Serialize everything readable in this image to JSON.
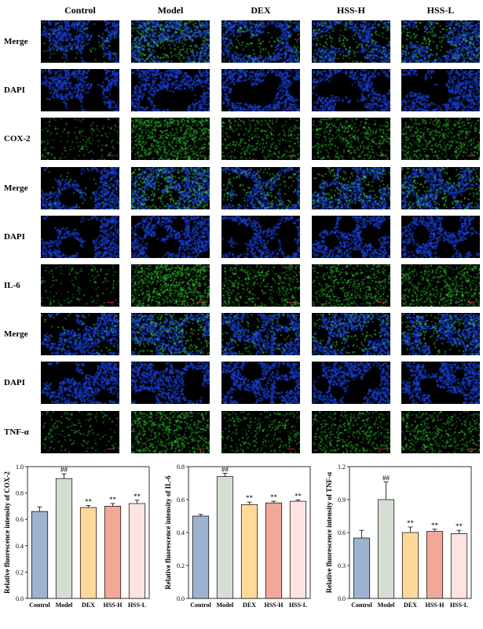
{
  "figure": {
    "columns": [
      "Control",
      "Model",
      "DEX",
      "HSS-H",
      "HSS-L"
    ],
    "rows": [
      {
        "label": "Merge",
        "type": "merge"
      },
      {
        "label": "DAPI",
        "type": "dapi"
      },
      {
        "label": "COX-2",
        "type": "marker"
      },
      {
        "label": "Merge",
        "type": "merge"
      },
      {
        "label": "DAPI",
        "type": "dapi"
      },
      {
        "label": "IL-6",
        "type": "marker"
      },
      {
        "label": "Merge",
        "type": "merge"
      },
      {
        "label": "DAPI",
        "type": "dapi"
      },
      {
        "label": "TNF-α",
        "type": "marker"
      }
    ],
    "colors": {
      "dapi": "#1a3fd6",
      "marker": "#36d43a",
      "background": "#000000"
    }
  },
  "chart_data": [
    {
      "type": "bar",
      "categories": [
        "Control",
        "Model",
        "DEX",
        "HSS-H",
        "HSS-L"
      ],
      "values": [
        0.66,
        0.91,
        0.69,
        0.7,
        0.72
      ],
      "errors": [
        0.035,
        0.035,
        0.015,
        0.02,
        0.025
      ],
      "significance": [
        "",
        "##",
        "**",
        "**",
        "**"
      ],
      "ylabel": "Relative fluorescence intensity of COX-2",
      "ylim": [
        0.0,
        1.0
      ],
      "yticks": [
        "0.0",
        "0.2",
        "0.4",
        "0.6",
        "0.8",
        "1.0"
      ],
      "ytick_values": [
        0.0,
        0.2,
        0.4,
        0.6,
        0.8,
        1.0
      ],
      "colors": [
        "#9db3cf",
        "#d6ded4",
        "#ffd999",
        "#f0a898",
        "#fde3e1"
      ],
      "grid": false
    },
    {
      "type": "bar",
      "categories": [
        "Control",
        "Model",
        "DEX",
        "HSS-H",
        "HSS-L"
      ],
      "values": [
        0.5,
        0.74,
        0.57,
        0.58,
        0.59
      ],
      "errors": [
        0.01,
        0.02,
        0.015,
        0.01,
        0.008
      ],
      "significance": [
        "",
        "##",
        "**",
        "**",
        "**"
      ],
      "ylabel": "Relative fluorescence intensity of IL-6",
      "ylim": [
        0.0,
        0.8
      ],
      "yticks": [
        "0.0",
        "0.2",
        "0.4",
        "0.6",
        "0.8"
      ],
      "ytick_values": [
        0.0,
        0.2,
        0.4,
        0.6,
        0.8
      ],
      "colors": [
        "#9db3cf",
        "#d6ded4",
        "#ffd999",
        "#f0a898",
        "#fde3e1"
      ],
      "grid": false
    },
    {
      "type": "bar",
      "categories": [
        "Control",
        "Model",
        "DEX",
        "HSS-H",
        "HSS-L"
      ],
      "values": [
        0.55,
        0.9,
        0.6,
        0.61,
        0.59
      ],
      "errors": [
        0.07,
        0.16,
        0.05,
        0.02,
        0.03
      ],
      "significance": [
        "",
        "##",
        "**",
        "**",
        "**"
      ],
      "ylabel": "Relative fluorescence intensity of TNF-α",
      "ylim": [
        0.0,
        1.2
      ],
      "yticks": [
        "0.0",
        "0.3",
        "0.6",
        "0.9",
        "1.2"
      ],
      "ytick_values": [
        0.0,
        0.3,
        0.6,
        0.9,
        1.2
      ],
      "colors": [
        "#9db3cf",
        "#d6ded4",
        "#ffd999",
        "#f0a898",
        "#fde3e1"
      ],
      "grid": false
    }
  ]
}
